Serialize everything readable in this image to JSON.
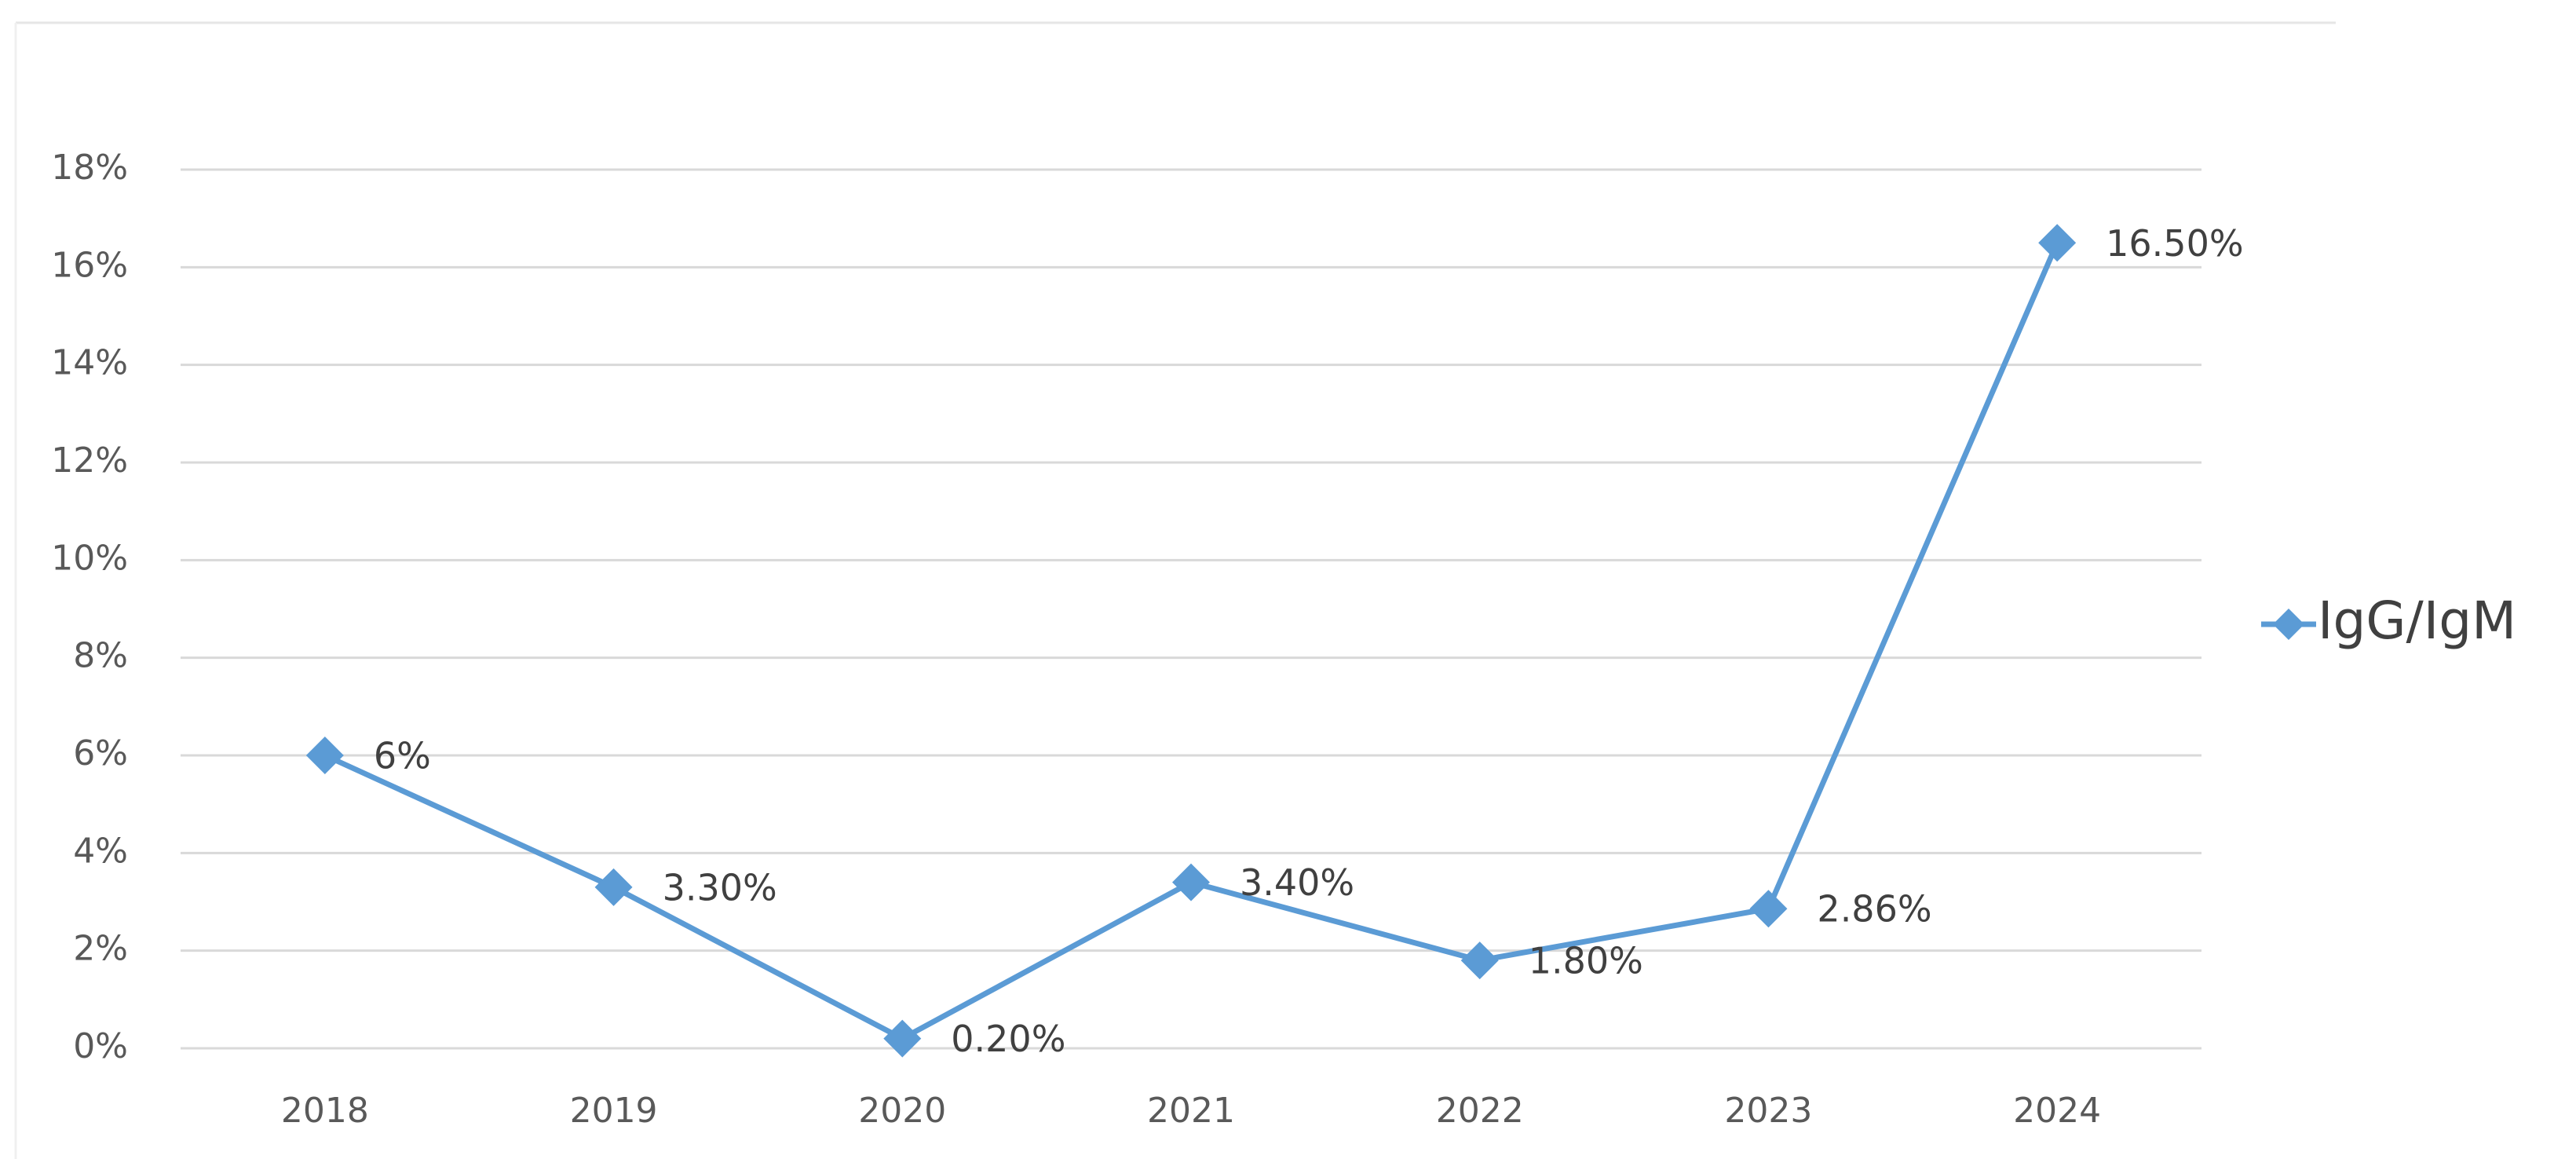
{
  "chart_data": {
    "type": "line",
    "categories": [
      "2018",
      "2019",
      "2020",
      "2021",
      "2022",
      "2023",
      "2024"
    ],
    "series": [
      {
        "name": "IgG/IgM",
        "color": "#5b9bd5",
        "values": [
          6,
          3.3,
          0.2,
          3.4,
          1.8,
          2.86,
          16.5
        ],
        "value_labels": [
          "6%",
          "3.30%",
          "0.20%",
          "3.40%",
          "1.80%",
          "2.86%",
          "16.50%"
        ]
      }
    ],
    "ylim": [
      0,
      18
    ],
    "yticks": [
      {
        "value": 0,
        "label": "0%"
      },
      {
        "value": 2,
        "label": "2%"
      },
      {
        "value": 4,
        "label": "4%"
      },
      {
        "value": 6,
        "label": "6%"
      },
      {
        "value": 8,
        "label": "8%"
      },
      {
        "value": 10,
        "label": "10%"
      },
      {
        "value": 12,
        "label": "12%"
      },
      {
        "value": 14,
        "label": "14%"
      },
      {
        "value": 16,
        "label": "16%"
      },
      {
        "value": 18,
        "label": "18%"
      }
    ],
    "grid": true,
    "legend": "right"
  }
}
